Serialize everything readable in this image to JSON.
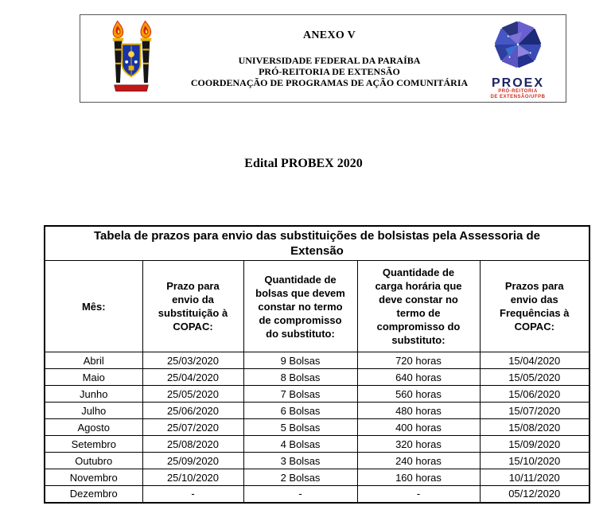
{
  "header": {
    "anexo_label": "ANEXO V",
    "institution_lines": [
      "UNIVERSIDADE FEDERAL DA PARAÍBA",
      "PRÓ-REITORIA DE EXTENSÃO",
      "COORDENAÇÃO DE PROGRAMAS DE AÇÃO COMUNITÁRIA"
    ],
    "proex_logo": {
      "title": "PROEX",
      "subtitle_line1": "PRÓ-REITORIA",
      "subtitle_line2": "DE EXTENSÃO/UFPB"
    }
  },
  "document_title": "Edital PROBEX 2020",
  "table": {
    "caption_line1": "Tabela de prazos para envio das substituições de bolsistas pela Assessoria de",
    "caption_line2": "Extensão",
    "columns": [
      "Mês:",
      "Prazo para envio da substituição à COPAC:",
      "Quantidade de bolsas que devem constar no termo de compromisso do substituto:",
      "Quantidade de carga horária que deve constar no termo de compromisso do substituto:",
      "Prazos para envio das Frequências à COPAC:"
    ],
    "rows": [
      [
        "Abril",
        "25/03/2020",
        "9 Bolsas",
        "720 horas",
        "15/04/2020"
      ],
      [
        "Maio",
        "25/04/2020",
        "8 Bolsas",
        "640 horas",
        "15/05/2020"
      ],
      [
        "Junho",
        "25/05/2020",
        "7 Bolsas",
        "560 horas",
        "15/06/2020"
      ],
      [
        "Julho",
        "25/06/2020",
        "6 Bolsas",
        "480 horas",
        "15/07/2020"
      ],
      [
        "Agosto",
        "25/07/2020",
        "5 Bolsas",
        "400 horas",
        "15/08/2020"
      ],
      [
        "Setembro",
        "25/08/2020",
        "4 Bolsas",
        "320 horas",
        "15/09/2020"
      ],
      [
        "Outubro",
        "25/09/2020",
        "3 Bolsas",
        "240 horas",
        "15/10/2020"
      ],
      [
        "Novembro",
        "25/10/2020",
        "2 Bolsas",
        "160 horas",
        "10/11/2020"
      ],
      [
        "Dezembro",
        "-",
        "-",
        "-",
        "05/12/2020"
      ]
    ]
  },
  "colors": {
    "text": "#000000",
    "border": "#000000",
    "proex_navy": "#1b2464",
    "proex_red": "#d42b1e",
    "flame_orange": "#f59a00",
    "flame_red": "#d42016",
    "shield_blue": "#1834a8",
    "shield_gold": "#e8b400",
    "banner_red": "#c01818"
  }
}
